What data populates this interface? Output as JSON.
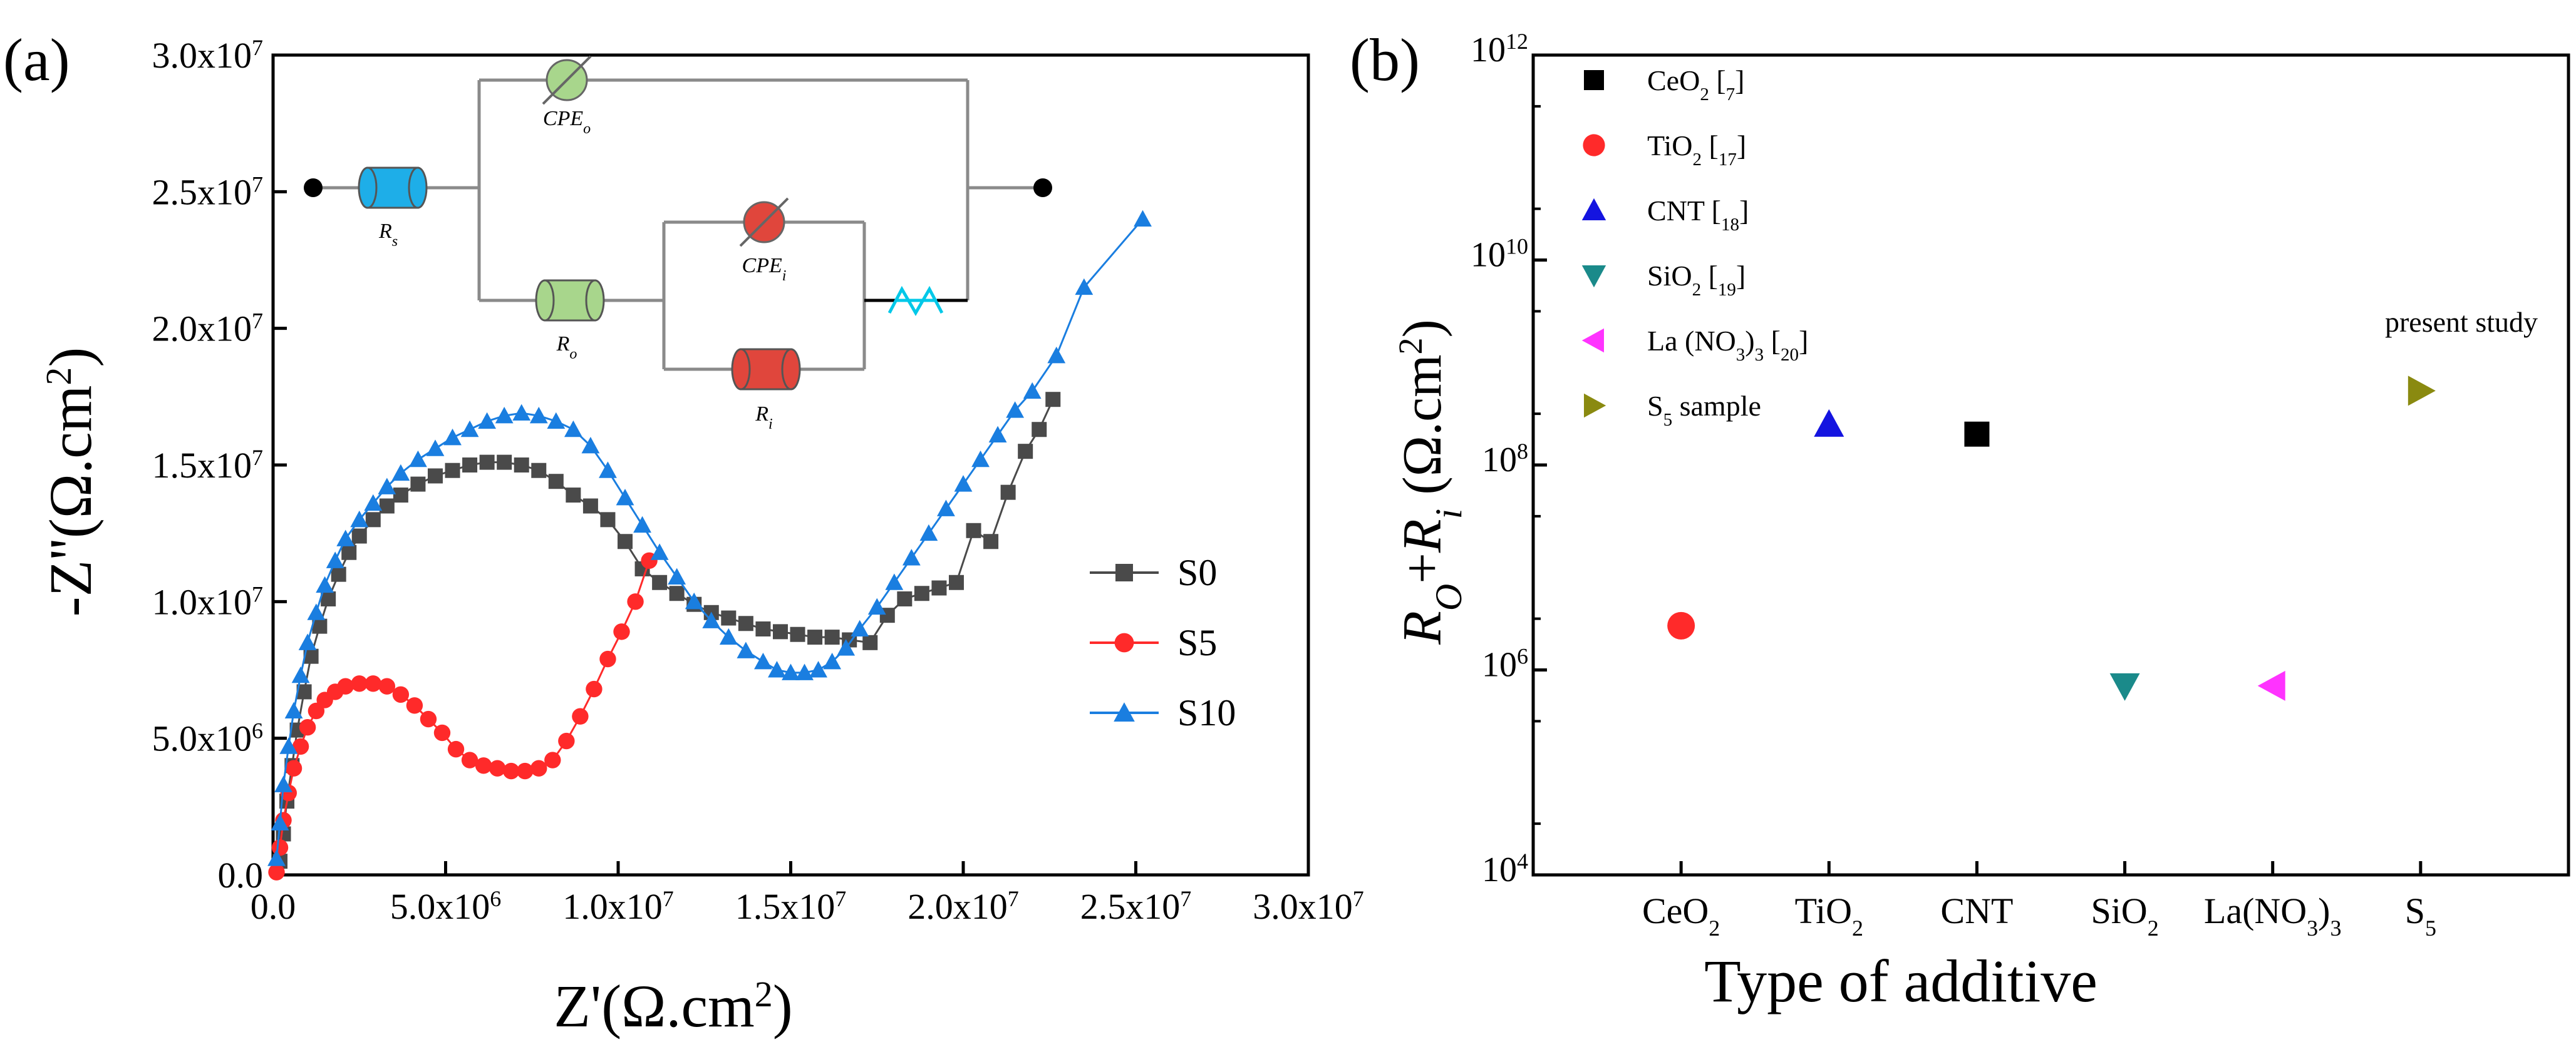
{
  "colors": {
    "s0": "#4a4a4a",
    "s5": "#ff2a2a",
    "s10": "#1a7ee0",
    "axis": "#000000",
    "ceo2": "#000000",
    "tio2": "#ff2a2a",
    "cnt": "#1414e0",
    "sio2": "#1a8a8a",
    "la": "#ff33ff",
    "s5b": "#8a8a10",
    "circuit_rs": "#1eaee8",
    "circuit_cpe": "#a8d68c",
    "circuit_ri": "#e0463c",
    "circuit_w": "#00c8e8"
  },
  "chart_data": [
    {
      "id": "a",
      "type": "line",
      "panel_label": "(a)",
      "xlabel": "Z'(Ω.cm²)",
      "ylabel": "-Z''(Ω.cm²)",
      "xlim": [
        0,
        30000000
      ],
      "ylim": [
        0,
        30000000
      ],
      "x_ticks": [
        0,
        5000000,
        10000000,
        15000000,
        20000000,
        25000000,
        30000000
      ],
      "x_tick_labels": [
        "0.0",
        "5.0x10",
        "1.0x10",
        "1.5x10",
        "2.0x10",
        "2.5x10",
        "3.0x10"
      ],
      "x_tick_exps": [
        "",
        "6",
        "7",
        "7",
        "7",
        "7",
        "7"
      ],
      "y_ticks": [
        0,
        5000000,
        10000000,
        15000000,
        20000000,
        25000000,
        30000000
      ],
      "y_tick_labels": [
        "0.0",
        "5.0x10",
        "1.0x10",
        "1.5x10",
        "2.0x10",
        "2.5x10",
        "3.0x10"
      ],
      "y_tick_exps": [
        "",
        "6",
        "7",
        "7",
        "7",
        "7",
        "7"
      ],
      "legend": [
        "S0",
        "S5",
        "S10"
      ],
      "series": [
        {
          "name": "S0",
          "marker": "square",
          "x": [
            200000,
            300000,
            400000,
            550000,
            700000,
            900000,
            1100000,
            1350000,
            1600000,
            1900000,
            2200000,
            2500000,
            2900000,
            3300000,
            3700000,
            4200000,
            4700000,
            5200000,
            5700000,
            6200000,
            6700000,
            7200000,
            7700000,
            8200000,
            8700000,
            9200000,
            9700000,
            10200000,
            10700000,
            11200000,
            11700000,
            12200000,
            12700000,
            13200000,
            13700000,
            14200000,
            14700000,
            15200000,
            15700000,
            16200000,
            16700000,
            17300000,
            17800000,
            18300000,
            18800000,
            19300000,
            19800000,
            20300000,
            20800000,
            21300000,
            21800000,
            22200000,
            22600000
          ],
          "y": [
            500000,
            1500000,
            2700000,
            4000000,
            5300000,
            6700000,
            8000000,
            9100000,
            10100000,
            11000000,
            11800000,
            12400000,
            13000000,
            13500000,
            13900000,
            14300000,
            14600000,
            14800000,
            15000000,
            15100000,
            15100000,
            15000000,
            14800000,
            14400000,
            13900000,
            13500000,
            13000000,
            12200000,
            11200000,
            10700000,
            10300000,
            9900000,
            9600000,
            9400000,
            9200000,
            9000000,
            8900000,
            8800000,
            8700000,
            8700000,
            8600000,
            8500000,
            9500000,
            10100000,
            10300000,
            10500000,
            10700000,
            12600000,
            12200000,
            14000000,
            15500000,
            16300000,
            17400000
          ]
        },
        {
          "name": "S5",
          "marker": "circle",
          "x": [
            100000,
            200000,
            300000,
            450000,
            600000,
            800000,
            1000000,
            1250000,
            1500000,
            1800000,
            2100000,
            2500000,
            2900000,
            3300000,
            3700000,
            4100000,
            4500000,
            4900000,
            5300000,
            5700000,
            6100000,
            6500000,
            6900000,
            7300000,
            7700000,
            8100000,
            8500000,
            8900000,
            9300000,
            9700000,
            10100000,
            10500000,
            10900000
          ],
          "y": [
            100000,
            1000000,
            2000000,
            3000000,
            3900000,
            4700000,
            5400000,
            6000000,
            6400000,
            6700000,
            6900000,
            7000000,
            7000000,
            6900000,
            6600000,
            6200000,
            5700000,
            5200000,
            4600000,
            4200000,
            4000000,
            3900000,
            3800000,
            3800000,
            3900000,
            4200000,
            4900000,
            5800000,
            6800000,
            7900000,
            8900000,
            10000000,
            11500000
          ]
        },
        {
          "name": "S10",
          "marker": "triangle",
          "x": [
            100000,
            200000,
            300000,
            450000,
            600000,
            800000,
            1000000,
            1250000,
            1500000,
            1800000,
            2100000,
            2500000,
            2900000,
            3300000,
            3700000,
            4200000,
            4700000,
            5200000,
            5700000,
            6200000,
            6700000,
            7200000,
            7700000,
            8200000,
            8700000,
            9200000,
            9700000,
            10200000,
            10700000,
            11200000,
            11700000,
            12200000,
            12700000,
            13200000,
            13700000,
            14200000,
            14600000,
            15000000,
            15400000,
            15800000,
            16200000,
            16600000,
            17000000,
            17500000,
            18000000,
            18500000,
            19000000,
            19500000,
            20000000,
            20500000,
            21000000,
            21500000,
            22000000,
            22700000,
            23500000,
            25200000
          ],
          "y": [
            600000,
            1900000,
            3300000,
            4700000,
            6000000,
            7300000,
            8500000,
            9600000,
            10600000,
            11500000,
            12300000,
            13000000,
            13600000,
            14200000,
            14700000,
            15200000,
            15600000,
            16000000,
            16300000,
            16600000,
            16800000,
            16900000,
            16800000,
            16600000,
            16300000,
            15700000,
            14800000,
            13800000,
            12800000,
            11800000,
            10900000,
            10000000,
            9300000,
            8700000,
            8200000,
            7800000,
            7500000,
            7400000,
            7400000,
            7500000,
            7800000,
            8300000,
            9000000,
            9800000,
            10700000,
            11600000,
            12500000,
            13400000,
            14300000,
            15200000,
            16100000,
            17000000,
            17700000,
            19000000,
            21500000,
            24000000
          ]
        }
      ],
      "circuit": {
        "labels": {
          "rs": "R",
          "rs_sub": "s",
          "cpeo": "CPE",
          "cpeo_sub": "o",
          "ro": "R",
          "ro_sub": "o",
          "cpei": "CPE",
          "cpei_sub": "i",
          "ri": "R",
          "ri_sub": "i"
        }
      }
    },
    {
      "id": "b",
      "type": "scatter",
      "panel_label": "(b)",
      "xlabel": "Type of additive",
      "ylabel": "R_O+R_i (Ω.cm²)",
      "yscale": "log",
      "ylim": [
        10000,
        1000000000000
      ],
      "categories": [
        "CeO2",
        "TiO2",
        "CNT",
        "SiO2",
        "La(NO3)3",
        "S5"
      ],
      "y_tick_exps": [
        "4",
        "6",
        "8",
        "10",
        "12"
      ],
      "y_tick_base": "10",
      "annotation": "present study",
      "points": [
        {
          "legend": "CeO2 [7]",
          "marker": "square",
          "category": "CNT",
          "value": 200000000
        },
        {
          "legend": "TiO2 [17]",
          "marker": "circle",
          "category": "CeO2",
          "value": 2700000
        },
        {
          "legend": "CNT [18]",
          "marker": "triangle-up",
          "category": "TiO2",
          "value": 250000000
        },
        {
          "legend": "SiO2  [19]",
          "marker": "triangle-down",
          "category": "SiO2",
          "value": 700000
        },
        {
          "legend": "La (NO3)3 [20]",
          "marker": "triangle-left",
          "category": "La(NO3)3",
          "value": 700000
        },
        {
          "legend": "S5 sample",
          "marker": "triangle-right",
          "category": "S5",
          "value": 530000000
        }
      ]
    }
  ]
}
